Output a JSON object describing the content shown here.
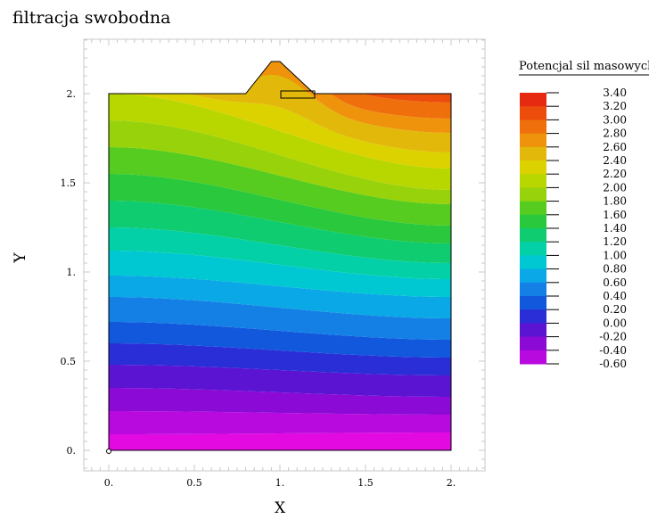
{
  "title": "filtracja swobodna",
  "chart_data": {
    "type": "heatmap",
    "xlabel": "X",
    "ylabel": "Y",
    "xlim": [
      -0.2,
      2.2
    ],
    "ylim": [
      -0.1,
      2.3
    ],
    "x_ticks": [
      0,
      0.5,
      1,
      1.5,
      2
    ],
    "x_tick_labels": [
      "0.",
      "0.5",
      "1.",
      "1.5",
      "2."
    ],
    "y_ticks": [
      0,
      0.5,
      1,
      1.5,
      2
    ],
    "y_tick_labels": [
      "0.",
      "0.5",
      "1.",
      "1.5",
      "2."
    ],
    "domain_outline": [
      [
        0,
        0
      ],
      [
        2,
        0
      ],
      [
        2,
        2
      ],
      [
        1.2,
        2
      ],
      [
        1,
        2.18
      ],
      [
        0.95,
        2.18
      ],
      [
        0.8,
        2
      ],
      [
        0,
        2
      ]
    ],
    "legend": {
      "title": "Potencjal sil masowych",
      "levels": [
        3.4,
        3.2,
        3.0,
        2.8,
        2.6,
        2.4,
        2.2,
        2.0,
        1.8,
        1.6,
        1.4,
        1.2,
        1.0,
        0.8,
        0.6,
        0.4,
        0.2,
        0.0,
        -0.2,
        -0.4,
        -0.6
      ],
      "labels": [
        "3.40",
        "3.20",
        "3.00",
        "2.80",
        "2.60",
        "2.40",
        "2.20",
        "2.00",
        "1.80",
        "1.60",
        "1.40",
        "1.20",
        "1.00",
        "0.80",
        "0.60",
        "0.40",
        "0.20",
        "0.00",
        "-0.20",
        "-0.40",
        "-0.60"
      ],
      "colors": [
        "#e62a12",
        "#ec4d0c",
        "#ee6f0c",
        "#f0930c",
        "#e2b80a",
        "#dcd200",
        "#b8d700",
        "#98d20a",
        "#55cc1f",
        "#2ac83c",
        "#0fcc70",
        "#04d0a8",
        "#00c8d2",
        "#0aa8e6",
        "#1480e6",
        "#1258dc",
        "#2a2ed6",
        "#5a14d2",
        "#8c0ad6",
        "#b80ade",
        "#e20ae0"
      ]
    },
    "series": [
      {
        "values_left": [
          -0.6,
          -0.4,
          -0.2,
          0.0,
          0.2,
          0.4,
          0.6,
          0.8,
          1.0,
          1.2,
          1.4,
          1.6,
          1.8,
          2.0,
          2.2,
          2.4
        ],
        "y_at_x0": [
          0.0,
          0.09,
          0.22,
          0.35,
          0.48,
          0.6,
          0.72,
          0.86,
          0.98,
          1.12,
          1.25,
          1.4,
          1.55,
          1.7,
          1.85,
          2.0
        ]
      },
      {
        "values_right": [
          -0.6,
          -0.4,
          -0.2,
          0.0,
          0.2,
          0.4,
          0.6,
          0.8,
          1.0,
          1.2,
          1.4,
          1.6,
          1.8,
          2.0,
          2.2,
          2.4,
          2.6,
          2.8,
          3.0,
          3.2,
          3.4
        ],
        "y_at_x2": [
          0.0,
          0.1,
          0.2,
          0.3,
          0.42,
          0.52,
          0.62,
          0.74,
          0.86,
          0.96,
          1.05,
          1.16,
          1.26,
          1.38,
          1.46,
          1.58,
          1.67,
          1.78,
          1.86,
          1.95,
          2.0
        ]
      }
    ]
  }
}
